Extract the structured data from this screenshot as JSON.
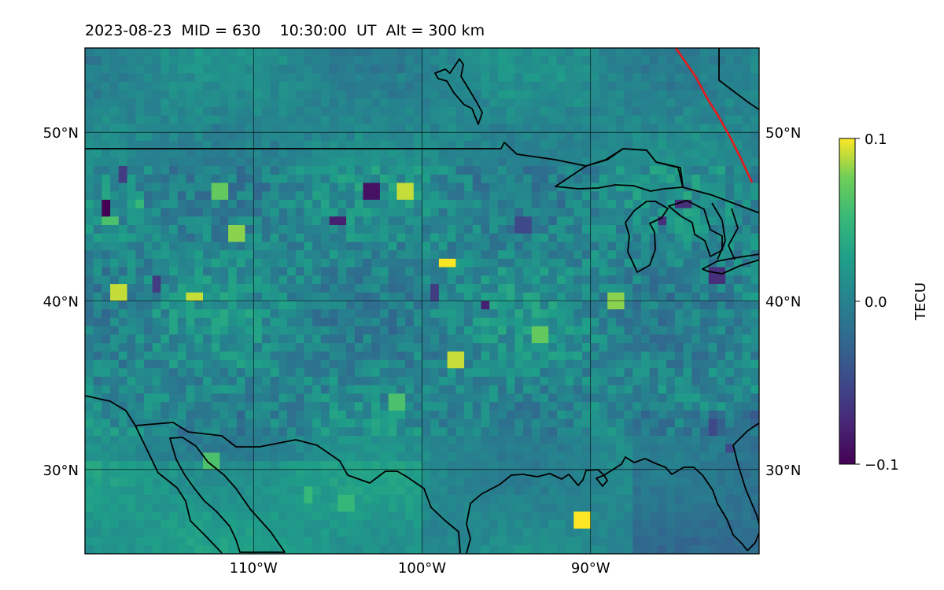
{
  "title": {
    "date": "2023-08-23",
    "mid": "MID = 630",
    "time": "10:30:00  UT",
    "alt": "Alt = 300 km"
  },
  "map": {
    "lon_range": [
      -120,
      -80
    ],
    "lat_range": [
      25,
      55
    ],
    "lon_ticks": [
      {
        "value": -110,
        "label": "110°W"
      },
      {
        "value": -100,
        "label": "100°W"
      },
      {
        "value": -90,
        "label": "90°W"
      }
    ],
    "lat_ticks": [
      {
        "value": 50,
        "label": "50°N"
      },
      {
        "value": 40,
        "label": "40°N"
      },
      {
        "value": 30,
        "label": "30°N"
      }
    ],
    "gridlines": true,
    "terminator_color": "#e41a1c",
    "coast_color": "#000000"
  },
  "colorbar": {
    "label": "TECU",
    "colormap": "viridis",
    "ticks": [
      {
        "value": 0.1,
        "label": "0.1"
      },
      {
        "value": 0.0,
        "label": "0.0"
      },
      {
        "value": -0.1,
        "label": "−0.1"
      }
    ],
    "range": [
      -0.1,
      0.1
    ]
  },
  "hotspots": [
    {
      "lon": -98.8,
      "lat": 42.5,
      "v": 0.1
    },
    {
      "lon": -98.2,
      "lat": 36.7,
      "v": 0.09
    },
    {
      "lon": -90.7,
      "lat": 27.1,
      "v": 0.1
    },
    {
      "lon": -113.7,
      "lat": 40.5,
      "v": 0.09
    },
    {
      "lon": -118.3,
      "lat": 40.7,
      "v": 0.09
    },
    {
      "lon": -101.2,
      "lat": 46.9,
      "v": 0.09
    },
    {
      "lon": -111.1,
      "lat": 44.4,
      "v": 0.08
    },
    {
      "lon": -112.1,
      "lat": 46.7,
      "v": 0.07
    },
    {
      "lon": -88.6,
      "lat": 40.2,
      "v": 0.08
    },
    {
      "lon": -118.8,
      "lat": 45.0,
      "v": 0.06
    },
    {
      "lon": -112.8,
      "lat": 30.8,
      "v": 0.06
    },
    {
      "lon": -104.9,
      "lat": 28.2,
      "v": 0.05
    },
    {
      "lon": -93.3,
      "lat": 38.1,
      "v": 0.07
    },
    {
      "lon": -101.8,
      "lat": 34.2,
      "v": 0.06
    },
    {
      "lon": -117.0,
      "lat": 46.0,
      "v": 0.05
    },
    {
      "lon": -107.0,
      "lat": 28.8,
      "v": 0.05
    },
    {
      "lon": -119.0,
      "lat": 45.6,
      "v": -0.1
    },
    {
      "lon": -103.4,
      "lat": 46.7,
      "v": -0.09
    },
    {
      "lon": -105.2,
      "lat": 45.0,
      "v": -0.08
    },
    {
      "lon": -96.5,
      "lat": 40.0,
      "v": -0.08
    },
    {
      "lon": -118.0,
      "lat": 47.9,
      "v": -0.06
    },
    {
      "lon": -116.0,
      "lat": 41.4,
      "v": -0.06
    },
    {
      "lon": -84.8,
      "lat": 46.0,
      "v": -0.07
    },
    {
      "lon": -86.0,
      "lat": 45.0,
      "v": -0.07
    },
    {
      "lon": -82.7,
      "lat": 41.7,
      "v": -0.07
    },
    {
      "lon": -83.0,
      "lat": 32.7,
      "v": -0.05
    },
    {
      "lon": -82.0,
      "lat": 31.5,
      "v": -0.05
    },
    {
      "lon": -99.5,
      "lat": 40.7,
      "v": -0.06
    },
    {
      "lon": -94.4,
      "lat": 44.8,
      "v": -0.05
    }
  ]
}
